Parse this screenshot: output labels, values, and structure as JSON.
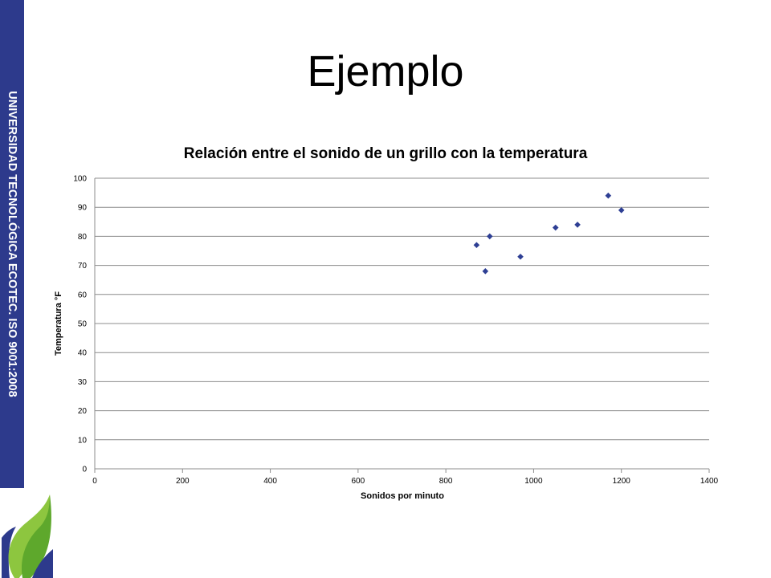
{
  "slide": {
    "title": "Ejemplo",
    "side_text": "UNIVERSIDAD TECNOLÓGICA ECOTEC. ISO 9001:2008"
  },
  "colors": {
    "side_bar": "#2d3a8c",
    "marker": "#2e3f94",
    "grid": "#8c8c8c"
  },
  "icons": {
    "logo": "ecotec-leaf-logo"
  },
  "chart_data": {
    "type": "scatter",
    "title": "Relación entre el sonido de un grillo con la temperatura",
    "xlabel": "Sonidos por minuto",
    "ylabel": "Temperatura °F",
    "xlim": [
      0,
      1400
    ],
    "ylim": [
      0,
      100
    ],
    "xticks": [
      0,
      200,
      400,
      600,
      800,
      1000,
      1200,
      1400
    ],
    "yticks": [
      0,
      10,
      20,
      30,
      40,
      50,
      60,
      70,
      80,
      90,
      100
    ],
    "grid": "horizontal",
    "legend": "none",
    "marker": "diamond",
    "points": [
      {
        "x": 870,
        "y": 77
      },
      {
        "x": 890,
        "y": 68
      },
      {
        "x": 900,
        "y": 80
      },
      {
        "x": 970,
        "y": 73
      },
      {
        "x": 1050,
        "y": 83
      },
      {
        "x": 1100,
        "y": 84
      },
      {
        "x": 1170,
        "y": 94
      },
      {
        "x": 1200,
        "y": 89
      }
    ]
  }
}
